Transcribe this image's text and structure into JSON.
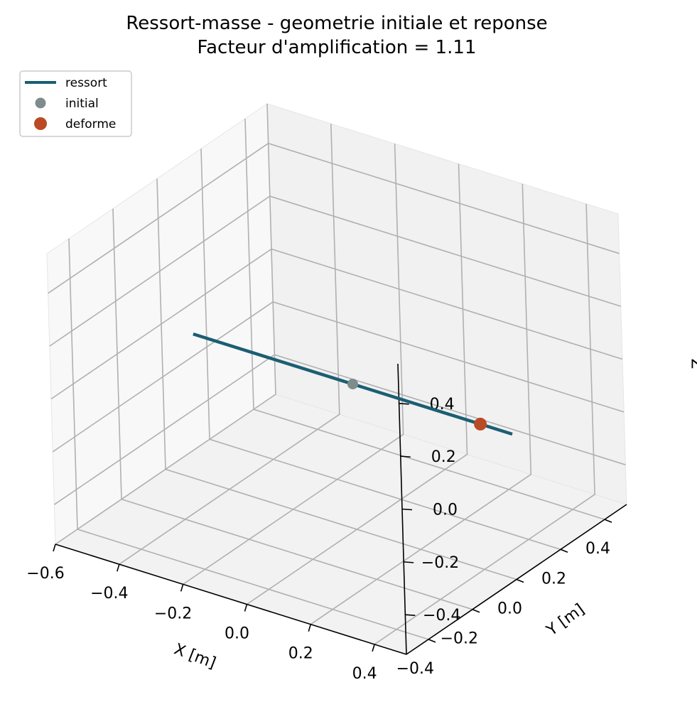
{
  "chart_data": {
    "type": "line",
    "projection": "3d",
    "title": "Ressort-masse - geometrie initiale et reponse",
    "subtitle": "Facteur d'amplification = 1.11",
    "xlabel": "X [m]",
    "ylabel": "Y [m]",
    "zlabel": "Z",
    "xlim": [
      -0.6,
      0.5
    ],
    "ylim": [
      -0.5,
      0.5
    ],
    "zlim": [
      -0.55,
      0.55
    ],
    "x_ticks": [
      -0.6,
      -0.4,
      -0.2,
      0.0,
      0.2,
      0.4
    ],
    "y_ticks": [
      -0.4,
      -0.2,
      0.0,
      0.2,
      0.4
    ],
    "z_ticks": [
      -0.4,
      -0.2,
      0.0,
      0.2,
      0.4
    ],
    "x_tick_labels": [
      "−0.6",
      "−0.4",
      "−0.2",
      "0.0",
      "0.2",
      "0.4"
    ],
    "y_tick_labels": [
      "−0.4",
      "−0.2",
      "0.0",
      "0.2",
      "0.4"
    ],
    "z_tick_labels": [
      "−0.4",
      "−0.2",
      "0.0",
      "0.2",
      "0.4"
    ],
    "grid": true,
    "legend_position": "top-left",
    "series": [
      {
        "name": "ressort",
        "kind": "line",
        "color": "#1b5e73",
        "points": [
          [
            -0.5,
            0.0,
            0.0
          ],
          [
            0.5,
            0.0,
            0.0
          ]
        ]
      },
      {
        "name": "initial",
        "kind": "marker",
        "color": "#7f8c8d",
        "points": [
          [
            0.0,
            0.0,
            0.0
          ]
        ]
      },
      {
        "name": "deforme",
        "kind": "marker",
        "color": "#ba4a24",
        "points": [
          [
            0.4,
            0.0,
            0.0
          ]
        ]
      }
    ]
  }
}
